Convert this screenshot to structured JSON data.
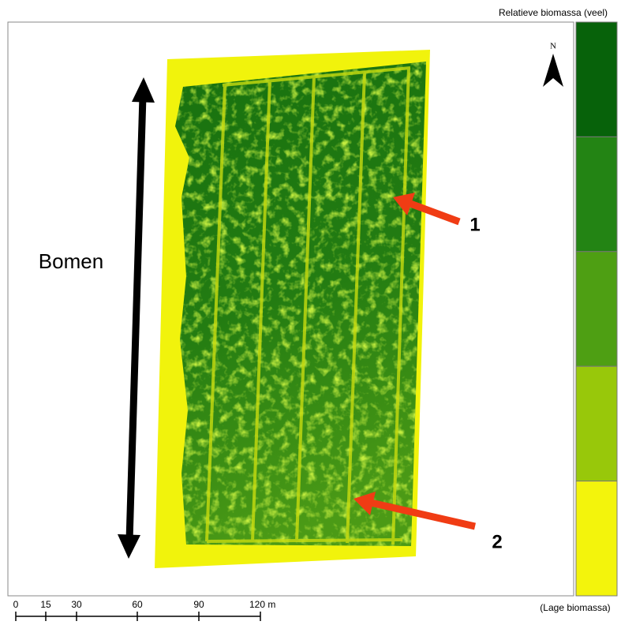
{
  "legend": {
    "title": "Relatieve biomassa (veel)",
    "bottom_label": "(Lage biomassa)",
    "colors": [
      "#07620a",
      "#238414",
      "#4e9f13",
      "#98c80a",
      "#f3f40c"
    ]
  },
  "north_label": "N",
  "annotations": {
    "trees": "Bomen",
    "marker_1": "1",
    "marker_2": "2"
  },
  "scale_bar": {
    "labels": [
      "0",
      "15",
      "30",
      "60",
      "90",
      "120 m"
    ]
  }
}
